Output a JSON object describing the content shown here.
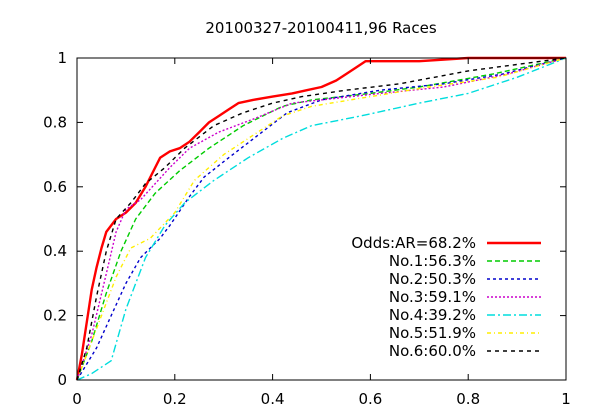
{
  "chart_data": {
    "type": "line",
    "title": "20100327-20100411,96 Races",
    "xlabel": "",
    "ylabel": "",
    "xlim": [
      0,
      1
    ],
    "ylim": [
      0,
      1
    ],
    "x_ticks": [
      "0",
      "0.2",
      "0.4",
      "0.6",
      "0.8",
      "1"
    ],
    "y_ticks": [
      "0",
      "0.2",
      "0.4",
      "0.6",
      "0.8",
      "1"
    ],
    "grid": false,
    "legend_placement": "bottom-right",
    "series": [
      {
        "name": "Odds:AR=68.2%",
        "color": "#ff0000",
        "dash": "solid",
        "width": 2.4,
        "points": [
          [
            0,
            0
          ],
          [
            0.01,
            0.08
          ],
          [
            0.02,
            0.18
          ],
          [
            0.03,
            0.28
          ],
          [
            0.04,
            0.35
          ],
          [
            0.05,
            0.41
          ],
          [
            0.06,
            0.46
          ],
          [
            0.08,
            0.5
          ],
          [
            0.1,
            0.52
          ],
          [
            0.12,
            0.55
          ],
          [
            0.14,
            0.6
          ],
          [
            0.16,
            0.66
          ],
          [
            0.17,
            0.69
          ],
          [
            0.19,
            0.71
          ],
          [
            0.21,
            0.72
          ],
          [
            0.23,
            0.74
          ],
          [
            0.25,
            0.77
          ],
          [
            0.27,
            0.8
          ],
          [
            0.29,
            0.82
          ],
          [
            0.31,
            0.84
          ],
          [
            0.33,
            0.86
          ],
          [
            0.36,
            0.87
          ],
          [
            0.4,
            0.88
          ],
          [
            0.44,
            0.89
          ],
          [
            0.47,
            0.9
          ],
          [
            0.5,
            0.91
          ],
          [
            0.53,
            0.93
          ],
          [
            0.55,
            0.95
          ],
          [
            0.57,
            0.97
          ],
          [
            0.59,
            0.99
          ],
          [
            0.7,
            0.99
          ],
          [
            0.8,
            1.0
          ],
          [
            1,
            1
          ]
        ]
      },
      {
        "name": "No.1:56.3%",
        "color": "#00cc00",
        "dash": "5,3",
        "width": 1.4,
        "points": [
          [
            0,
            0
          ],
          [
            0.03,
            0.12
          ],
          [
            0.06,
            0.27
          ],
          [
            0.09,
            0.4
          ],
          [
            0.12,
            0.5
          ],
          [
            0.16,
            0.58
          ],
          [
            0.21,
            0.65
          ],
          [
            0.27,
            0.72
          ],
          [
            0.34,
            0.79
          ],
          [
            0.42,
            0.85
          ],
          [
            0.48,
            0.87
          ],
          [
            0.6,
            0.89
          ],
          [
            0.7,
            0.91
          ],
          [
            0.85,
            0.95
          ],
          [
            1,
            1
          ]
        ]
      },
      {
        "name": "No.2:50.3%",
        "color": "#0000cc",
        "dash": "3,3",
        "width": 1.4,
        "points": [
          [
            0,
            0
          ],
          [
            0.04,
            0.1
          ],
          [
            0.07,
            0.2
          ],
          [
            0.1,
            0.3
          ],
          [
            0.13,
            0.38
          ],
          [
            0.15,
            0.41
          ],
          [
            0.17,
            0.44
          ],
          [
            0.19,
            0.48
          ],
          [
            0.23,
            0.57
          ],
          [
            0.26,
            0.63
          ],
          [
            0.31,
            0.69
          ],
          [
            0.37,
            0.76
          ],
          [
            0.43,
            0.83
          ],
          [
            0.5,
            0.87
          ],
          [
            0.62,
            0.9
          ],
          [
            0.75,
            0.92
          ],
          [
            0.87,
            0.95
          ],
          [
            1,
            1
          ]
        ]
      },
      {
        "name": "No.3:59.1%",
        "color": "#cc00cc",
        "dash": "2,2",
        "width": 1.4,
        "points": [
          [
            0,
            0
          ],
          [
            0.03,
            0.14
          ],
          [
            0.06,
            0.33
          ],
          [
            0.08,
            0.46
          ],
          [
            0.1,
            0.53
          ],
          [
            0.13,
            0.56
          ],
          [
            0.16,
            0.61
          ],
          [
            0.19,
            0.66
          ],
          [
            0.23,
            0.72
          ],
          [
            0.29,
            0.77
          ],
          [
            0.36,
            0.81
          ],
          [
            0.44,
            0.86
          ],
          [
            0.5,
            0.87
          ],
          [
            0.62,
            0.89
          ],
          [
            0.75,
            0.91
          ],
          [
            0.88,
            0.95
          ],
          [
            1,
            1
          ]
        ]
      },
      {
        "name": "No.4:39.2%",
        "color": "#00dddd",
        "dash": "8,3,2,3",
        "width": 1.4,
        "points": [
          [
            0,
            0
          ],
          [
            0.03,
            0.02
          ],
          [
            0.07,
            0.06
          ],
          [
            0.1,
            0.22
          ],
          [
            0.14,
            0.38
          ],
          [
            0.18,
            0.48
          ],
          [
            0.22,
            0.55
          ],
          [
            0.28,
            0.62
          ],
          [
            0.35,
            0.69
          ],
          [
            0.42,
            0.75
          ],
          [
            0.48,
            0.79
          ],
          [
            0.58,
            0.82
          ],
          [
            0.7,
            0.86
          ],
          [
            0.8,
            0.89
          ],
          [
            0.9,
            0.94
          ],
          [
            1,
            1
          ]
        ]
      },
      {
        "name": "No.5:51.9%",
        "color": "#ffee00",
        "dash": "4,3,1,3",
        "width": 1.4,
        "points": [
          [
            0,
            0
          ],
          [
            0.04,
            0.16
          ],
          [
            0.08,
            0.32
          ],
          [
            0.11,
            0.41
          ],
          [
            0.15,
            0.44
          ],
          [
            0.2,
            0.52
          ],
          [
            0.24,
            0.62
          ],
          [
            0.3,
            0.7
          ],
          [
            0.36,
            0.76
          ],
          [
            0.42,
            0.82
          ],
          [
            0.48,
            0.85
          ],
          [
            0.6,
            0.88
          ],
          [
            0.72,
            0.91
          ],
          [
            0.86,
            0.94
          ],
          [
            1,
            1
          ]
        ]
      },
      {
        "name": "No.6:60.0%",
        "color": "#000000",
        "dash": "4,4",
        "width": 1.4,
        "points": [
          [
            0,
            0
          ],
          [
            0.02,
            0.1
          ],
          [
            0.04,
            0.26
          ],
          [
            0.06,
            0.4
          ],
          [
            0.08,
            0.5
          ],
          [
            0.11,
            0.55
          ],
          [
            0.14,
            0.61
          ],
          [
            0.18,
            0.66
          ],
          [
            0.22,
            0.72
          ],
          [
            0.28,
            0.79
          ],
          [
            0.34,
            0.83
          ],
          [
            0.4,
            0.86
          ],
          [
            0.46,
            0.88
          ],
          [
            0.55,
            0.9
          ],
          [
            0.66,
            0.92
          ],
          [
            0.8,
            0.96
          ],
          [
            1,
            1
          ]
        ]
      }
    ]
  }
}
